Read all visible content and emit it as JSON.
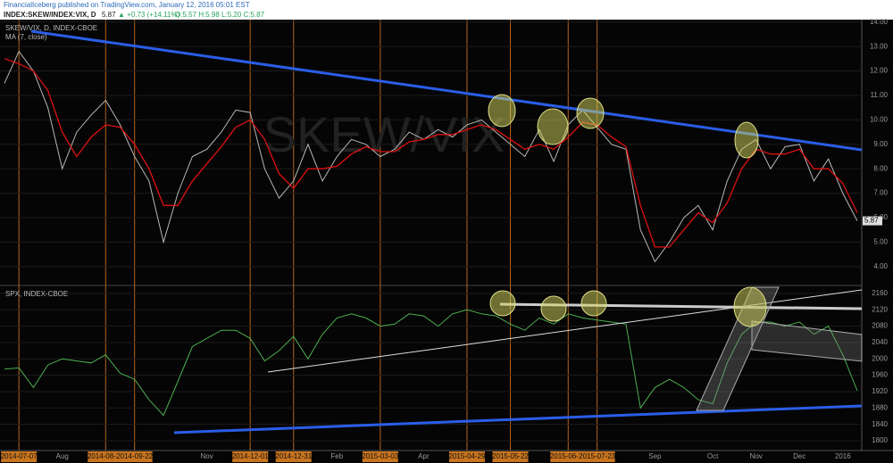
{
  "header": {
    "publisher": "FinancialIceberg published on TradingView.com, January 12, 2016 05:01 EST",
    "symbol": "INDEX:SKEW/INDEX:VIX, D",
    "last": "5.87",
    "change": "▲ +0.73 (+14.11%)",
    "ohlc": "O:5.57 H:5.98 L:5.20 C:5.87"
  },
  "chart_data": [
    {
      "type": "line",
      "title": "SKEW/VIX, D, INDEX-CBOE",
      "watermark": "SKEW/VIX",
      "ylim": [
        3.3,
        14.1
      ],
      "yticks": [
        {
          "value": 4,
          "label": "4.00"
        },
        {
          "value": 5,
          "label": "5.00"
        },
        {
          "value": 6,
          "label": "6.00"
        },
        {
          "value": 7,
          "label": "7.00"
        },
        {
          "value": 8,
          "label": "8.00"
        },
        {
          "value": 9,
          "label": "9.00"
        },
        {
          "value": 10,
          "label": "10.00"
        },
        {
          "value": 11,
          "label": "11.00"
        },
        {
          "value": 12,
          "label": "12.00"
        },
        {
          "value": 13,
          "label": "13.00"
        },
        {
          "value": 14,
          "label": "14.00"
        }
      ],
      "series": [
        {
          "name": "SKEW/VIX",
          "color": "#b8b8b8",
          "values": [
            11.5,
            12.8,
            12.0,
            10.5,
            8.0,
            9.5,
            10.2,
            10.8,
            9.8,
            8.5,
            7.5,
            5.0,
            7.0,
            8.5,
            8.8,
            9.5,
            10.4,
            10.3,
            8.0,
            6.8,
            7.5,
            9.0,
            7.5,
            8.5,
            9.2,
            9.0,
            8.5,
            8.8,
            9.5,
            9.2,
            9.6,
            9.3,
            9.8,
            10.0,
            9.5,
            9.0,
            8.5,
            9.6,
            8.3,
            9.8,
            10.4,
            9.7,
            9.0,
            8.8,
            5.5,
            4.2,
            5.0,
            6.0,
            6.5,
            5.5,
            7.5,
            8.8,
            9.2,
            8.0,
            8.9,
            9.0,
            7.5,
            8.4,
            7.0,
            5.87
          ]
        },
        {
          "name": "MA (7, close)",
          "color": "#e01010",
          "values": [
            12.5,
            12.3,
            12.0,
            11.2,
            9.5,
            8.5,
            9.3,
            9.8,
            9.7,
            9.0,
            8.0,
            6.5,
            6.5,
            7.5,
            8.2,
            8.9,
            9.7,
            10.0,
            9.2,
            7.8,
            7.2,
            8.0,
            8.0,
            8.1,
            8.6,
            8.9,
            8.7,
            8.7,
            9.1,
            9.2,
            9.4,
            9.4,
            9.6,
            9.8,
            9.6,
            9.2,
            8.8,
            9.0,
            8.8,
            9.3,
            9.9,
            9.8,
            9.3,
            8.9,
            6.5,
            4.8,
            4.8,
            5.5,
            6.2,
            5.8,
            6.6,
            8.0,
            8.8,
            8.6,
            8.6,
            8.8,
            8.0,
            8.0,
            7.4,
            6.2
          ]
        }
      ]
    },
    {
      "type": "line",
      "title": "SPX, INDEX-CBOE",
      "ylim": [
        1776,
        2175
      ],
      "yticks": [
        1800,
        1840,
        1880,
        1920,
        1960,
        2000,
        2040,
        2080,
        2120,
        2160
      ],
      "categories": [
        null,
        "2014-07-07",
        null,
        null,
        "Aug",
        null,
        null,
        "2014-08-28",
        null,
        "2014-09-22",
        null,
        null,
        null,
        null,
        "Nov",
        null,
        null,
        "2014-12-01",
        null,
        null,
        "2014-12-31",
        null,
        null,
        "Feb",
        null,
        null,
        "2015-03-03",
        null,
        null,
        "Apr",
        null,
        null,
        "2015-04-29",
        null,
        null,
        "2015-05-22",
        null,
        null,
        null,
        "2015-06-26",
        null,
        "2015-07-23",
        null,
        null,
        null,
        "Sep",
        null,
        null,
        null,
        "Oct",
        null,
        null,
        "Nov",
        null,
        null,
        "Dec",
        null,
        null,
        "2016",
        null
      ],
      "series": [
        {
          "name": "SPX",
          "color": "#4caf50",
          "values": [
            1975,
            1978,
            1930,
            1985,
            2000,
            1995,
            1990,
            2010,
            1965,
            1950,
            1900,
            1862,
            1945,
            2030,
            2050,
            2070,
            2070,
            2050,
            1995,
            2020,
            2055,
            2000,
            2060,
            2100,
            2110,
            2100,
            2080,
            2085,
            2110,
            2105,
            2080,
            2110,
            2120,
            2110,
            2105,
            2085,
            2070,
            2100,
            2085,
            2110,
            2100,
            2095,
            2090,
            2085,
            1880,
            1930,
            1950,
            1930,
            1900,
            1890,
            1990,
            2060,
            2090,
            2090,
            2080,
            2090,
            2060,
            2080,
            2010,
            1922
          ]
        }
      ]
    }
  ]
}
